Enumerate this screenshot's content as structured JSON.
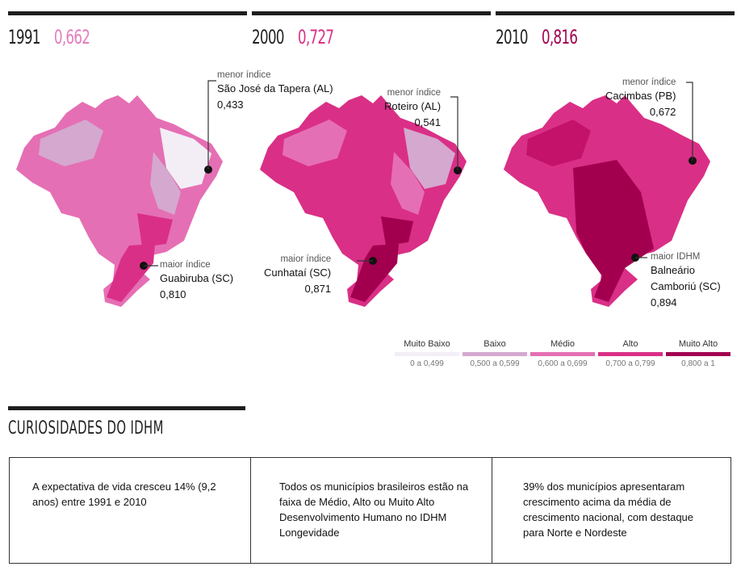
{
  "colors": {
    "muito_baixo": "#f3eef6",
    "baixo": "#d5a8cf",
    "medio": "#e56fb4",
    "alto": "#da2f86",
    "muito_alto": "#a2004f",
    "year_1991": "#e37dbd",
    "year_2000": "#da2f86",
    "year_2010": "#a2004f"
  },
  "panels": [
    {
      "year": "1991",
      "value": "0,662",
      "min": {
        "label": "menor índice",
        "name": "São José da Tapera (AL)",
        "value": "0,433"
      },
      "max": {
        "label": "maior índice",
        "name": "Guabiruba (SC)",
        "value": "0,810"
      }
    },
    {
      "year": "2000",
      "value": "0,727",
      "min": {
        "label": "menor índice",
        "name": "Roteiro (AL)",
        "value": "0,541"
      },
      "max": {
        "label": "maior índice",
        "name": "Cunhataí (SC)",
        "value": "0,871"
      }
    },
    {
      "year": "2010",
      "value": "0,816",
      "min": {
        "label": "menor índice",
        "name": "Cacimbas (PB)",
        "value": "0,672"
      },
      "max": {
        "label": "maior IDHM",
        "name": "Balneário",
        "name2": "Camboriú (SC)",
        "value": "0,894"
      }
    }
  ],
  "legend": [
    {
      "name": "Muito Baixo",
      "range": "0 a 0,499"
    },
    {
      "name": "Baixo",
      "range": "0,500 a 0,599"
    },
    {
      "name": "Médio",
      "range": "0,600 a 0,699"
    },
    {
      "name": "Alto",
      "range": "0,700 a 0,799"
    },
    {
      "name": "Muito Alto",
      "range": "0,800 a 1"
    }
  ],
  "curiosidades": {
    "title": "CURIOSIDADES DO IDHM",
    "items": [
      "A expectativa de vida cresceu 14% (9,2 anos) entre 1991 e 2010",
      "Todos os municípios brasileiros estão na faixa de Médio, Alto ou Muito Alto Desenvolvimento Humano no IDHM Longevidade",
      "39% dos municípios apresentaram crescimento acima da média de crescimento nacional, com destaque para Norte e Nordeste"
    ]
  },
  "chart_data": {
    "type": "choropleth-map",
    "series": [
      {
        "year": "1991",
        "value": 0.662,
        "min_municipio": "São José da Tapera (AL)",
        "min_value": 0.433,
        "max_municipio": "Guabiruba (SC)",
        "max_value": 0.81
      },
      {
        "year": "2000",
        "value": 0.727,
        "min_municipio": "Roteiro (AL)",
        "min_value": 0.541,
        "max_municipio": "Cunhataí (SC)",
        "max_value": 0.871
      },
      {
        "year": "2010",
        "value": 0.816,
        "min_municipio": "Cacimbas (PB)",
        "min_value": 0.672,
        "max_municipio": "Balneário Camboriú (SC)",
        "max_value": 0.894
      }
    ],
    "classes": [
      {
        "name": "Muito Baixo",
        "range": [
          0,
          0.499
        ]
      },
      {
        "name": "Baixo",
        "range": [
          0.5,
          0.599
        ]
      },
      {
        "name": "Médio",
        "range": [
          0.6,
          0.699
        ]
      },
      {
        "name": "Alto",
        "range": [
          0.7,
          0.799
        ]
      },
      {
        "name": "Muito Alto",
        "range": [
          0.8,
          1
        ]
      }
    ]
  }
}
